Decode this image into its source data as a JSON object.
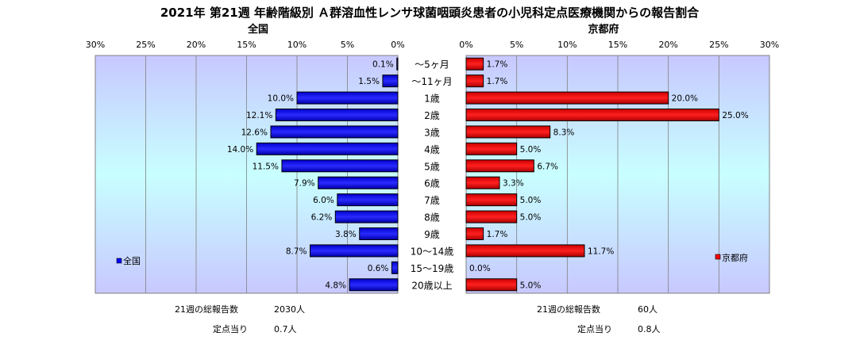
{
  "title": "2021年 第21週 年齢階級別 Ａ群溶血性レンサ球菌咽頭炎患者の小児科定点医療機関からの報告割合",
  "chart_data": [
    {
      "type": "bar",
      "orientation": "horizontal",
      "title": "全国",
      "legend": "全国",
      "legend_position": "bottom-left",
      "xlim": [
        0,
        30
      ],
      "reversed": true,
      "tick_labels": [
        "30%",
        "25%",
        "20%",
        "15%",
        "10%",
        "5%",
        "0%"
      ],
      "categories": [
        "〜5ヶ月",
        "〜11ヶ月",
        "1歳",
        "2歳",
        "3歳",
        "4歳",
        "5歳",
        "6歳",
        "7歳",
        "8歳",
        "9歳",
        "10〜14歳",
        "15〜19歳",
        "20歳以上"
      ],
      "values": [
        0.1,
        1.5,
        10.0,
        12.1,
        12.6,
        14.0,
        11.5,
        7.9,
        6.0,
        6.2,
        3.8,
        8.7,
        0.6,
        4.8
      ],
      "value_labels": [
        "0.1%",
        "1.5%",
        "10.0%",
        "12.1%",
        "12.6%",
        "14.0%",
        "11.5%",
        "7.9%",
        "6.0%",
        "6.2%",
        "3.8%",
        "8.7%",
        "0.6%",
        "4.8%"
      ],
      "bar_color": "#0000ff",
      "grid": true
    },
    {
      "type": "bar",
      "orientation": "horizontal",
      "title": "京都府",
      "legend": "京都府",
      "legend_position": "bottom-right",
      "xlim": [
        0,
        30
      ],
      "reversed": false,
      "tick_labels": [
        "0%",
        "5%",
        "10%",
        "15%",
        "20%",
        "25%",
        "30%"
      ],
      "categories": [
        "〜5ヶ月",
        "〜11ヶ月",
        "1歳",
        "2歳",
        "3歳",
        "4歳",
        "5歳",
        "6歳",
        "7歳",
        "8歳",
        "9歳",
        "10〜14歳",
        "15〜19歳",
        "20歳以上"
      ],
      "values": [
        1.7,
        1.7,
        20.0,
        25.0,
        8.3,
        5.0,
        6.7,
        3.3,
        5.0,
        5.0,
        1.7,
        11.7,
        0.0,
        5.0
      ],
      "value_labels": [
        "1.7%",
        "1.7%",
        "20.0%",
        "25.0%",
        "8.3%",
        "5.0%",
        "6.7%",
        "3.3%",
        "5.0%",
        "5.0%",
        "1.7%",
        "11.7%",
        "0.0%",
        "5.0%"
      ],
      "bar_color": "#ff0000",
      "grid": true
    }
  ],
  "footer": {
    "national": {
      "total_label": "21週の総報告数",
      "total_value": "2030人",
      "per_label": "定点当り",
      "per_value": "0.7人"
    },
    "kyoto": {
      "total_label": "21週の総報告数",
      "total_value": "60人",
      "per_label": "定点当り",
      "per_value": "0.8人"
    }
  },
  "colors": {
    "plot_top": "#c8c8ff",
    "plot_mid": "#c8ffff",
    "grid": "#808080"
  }
}
